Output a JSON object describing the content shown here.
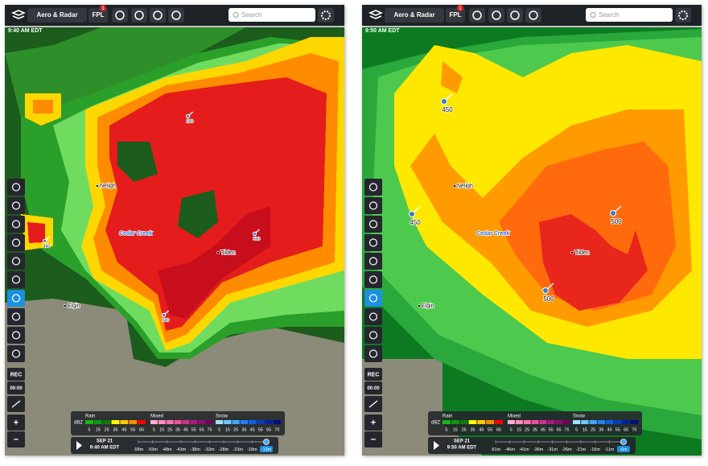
{
  "panels": [
    {
      "toolbar": {
        "layer": "Aero & Radar",
        "fpl": "FPL",
        "badge": "1",
        "search": "Search"
      },
      "timestamp": "9:40 AM EDT",
      "places": [
        "Neligh",
        "Cedar Creek",
        "Tilden",
        "Elgin"
      ],
      "altitudes": [
        "500",
        "450",
        "500",
        "500"
      ],
      "sidebar": [
        "REC",
        "00:00",
        "+",
        "−"
      ],
      "legend": {
        "unit": "dBZ",
        "groups": [
          {
            "name": "Rain",
            "labels": [
              "5",
              "15",
              "25",
              "35",
              "45",
              "55",
              "65"
            ]
          },
          {
            "name": "Mixed",
            "labels": [
              "5",
              "15",
              "25",
              "35",
              "45",
              "55",
              "65",
              "75"
            ]
          },
          {
            "name": "Snow",
            "labels": [
              "5",
              "15",
              "25",
              "35",
              "45",
              "55",
              "65",
              "70"
            ]
          }
        ]
      },
      "timeline": {
        "date": "SEP 21",
        "time": "9:40 AM EDT",
        "ticks": [
          "-58m",
          "-53m",
          "-48m",
          "-43m",
          "-38m",
          "-33m",
          "-28m",
          "-23m",
          "-18m",
          "-13m"
        ]
      }
    },
    {
      "toolbar": {
        "layer": "Aero & Radar",
        "fpl": "FPL",
        "badge": "1",
        "search": "Search"
      },
      "timestamp": "9:50 AM EDT",
      "places": [
        "Neligh",
        "Cedar Creek",
        "Tilden",
        "Elgin"
      ],
      "altitudes": [
        "450",
        "450",
        "500",
        "500"
      ],
      "sidebar": [
        "REC",
        "00:00",
        "+",
        "−"
      ],
      "legend": {
        "unit": "dBZ",
        "groups": [
          {
            "name": "Rain",
            "labels": [
              "5",
              "15",
              "25",
              "35",
              "45",
              "55",
              "65"
            ]
          },
          {
            "name": "Mixed",
            "labels": [
              "5",
              "15",
              "25",
              "35",
              "45",
              "55",
              "65",
              "75"
            ]
          },
          {
            "name": "Snow",
            "labels": [
              "5",
              "15",
              "25",
              "35",
              "45",
              "55",
              "65",
              "75"
            ]
          }
        ]
      },
      "timeline": {
        "date": "SEP 21",
        "time": "9:50 AM EDT",
        "ticks": [
          "-51m",
          "-46m",
          "-41m",
          "-36m",
          "-31m",
          "-26m",
          "-21m",
          "-16m",
          "-11m",
          "-6m"
        ]
      }
    }
  ]
}
